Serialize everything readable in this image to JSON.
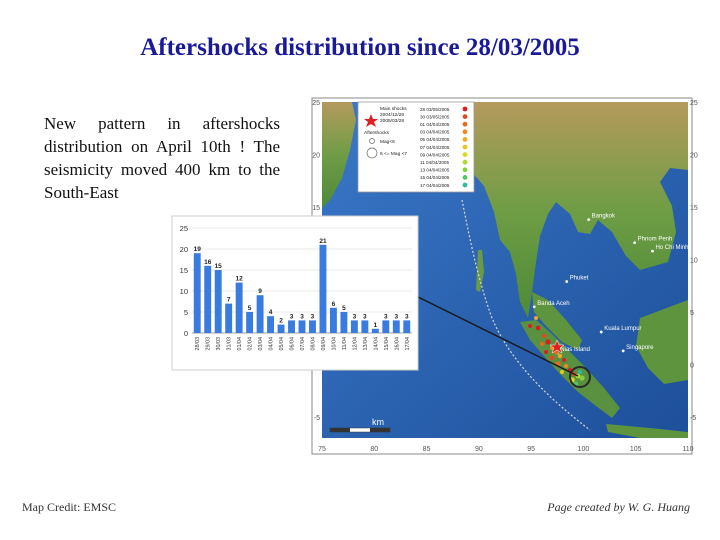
{
  "title": "Aftershocks distribution since 28/03/2005",
  "intro": "New pattern in aftershocks distribution on April 10th ! The seismicity moved 400 km to the South-East",
  "credit": "Map Credit: EMSC",
  "author": "Page created by W. G. Huang",
  "map": {
    "lat_ticks": [
      "25",
      "20",
      "15",
      "10",
      "5",
      "0",
      "-5"
    ],
    "lon_ticks": [
      "75",
      "80",
      "85",
      "90",
      "95",
      "100",
      "105",
      "110"
    ],
    "places": [
      {
        "name": "Bangkok",
        "lon": 100.5,
        "lat": 13.8
      },
      {
        "name": "Phnom Penh",
        "lon": 104.9,
        "lat": 11.6
      },
      {
        "name": "Ho Chi Minh",
        "lon": 106.6,
        "lat": 10.8
      },
      {
        "name": "Kuala Lumpur",
        "lon": 101.7,
        "lat": 3.1
      },
      {
        "name": "Singapore",
        "lon": 103.8,
        "lat": 1.3
      },
      {
        "name": "Banda Aceh",
        "lon": 95.3,
        "lat": 5.5
      },
      {
        "name": "Phuket",
        "lon": 98.4,
        "lat": 7.9
      },
      {
        "name": "Nias Island",
        "lon": 97.5,
        "lat": 1.1
      }
    ],
    "legend": {
      "mainshock": [
        "Main shocks",
        "2004/12/26",
        "2005/03/28"
      ],
      "aftershock_label": "Aftershocks",
      "mag_labels": [
        "Mag<6",
        "6 <= Mag <7"
      ],
      "dates": [
        {
          "label": "28 03/05/2005",
          "color": "#d62020"
        },
        {
          "label": "30 03/05/2005",
          "color": "#e04a20"
        },
        {
          "label": "01 04/04/2005",
          "color": "#e86a20"
        },
        {
          "label": "03 04/04/2005",
          "color": "#f08a20"
        },
        {
          "label": "05 04/04/2005",
          "color": "#f0a820"
        },
        {
          "label": "07 04/04/2005",
          "color": "#e8c820"
        },
        {
          "label": "09 04/04/2005",
          "color": "#d8d820"
        },
        {
          "label": "11 04/04/2005",
          "color": "#b0d830"
        },
        {
          "label": "13 04/04/2005",
          "color": "#80d040"
        },
        {
          "label": "15 04/04/2005",
          "color": "#50c860"
        },
        {
          "label": "17 04/04/2005",
          "color": "#30b8a0"
        }
      ]
    },
    "scale_label": "km"
  },
  "chart_data": {
    "type": "bar",
    "title": "",
    "xlabel": "",
    "ylabel": "",
    "ylim": [
      0,
      25
    ],
    "yticks": [
      0,
      5,
      10,
      15,
      20,
      25
    ],
    "categories": [
      "28/03",
      "29/03",
      "30/03",
      "31/03",
      "01/04",
      "02/04",
      "03/04",
      "04/04",
      "05/04",
      "06/04",
      "07/04",
      "08/04",
      "09/04",
      "10/04",
      "11/04",
      "12/04",
      "13/04",
      "14/04",
      "15/04",
      "16/04",
      "17/04"
    ],
    "values": [
      19,
      16,
      15,
      7,
      12,
      5,
      9,
      4,
      2,
      3,
      3,
      3,
      21,
      6,
      5,
      3,
      3,
      1,
      3,
      3,
      3
    ],
    "color": "#3a7be0"
  }
}
